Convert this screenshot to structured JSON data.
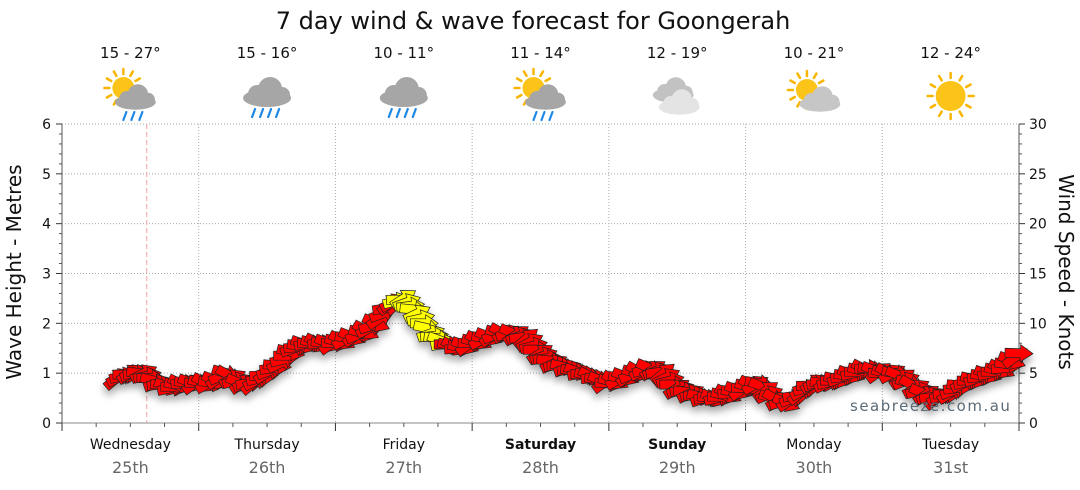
{
  "chart_data": {
    "type": "line",
    "title": "7 day wind & wave forecast for Goongerah",
    "ylabel_left": "Wave Height - Metres",
    "ylabel_right": "Wind Speed - Knots",
    "ylim_left": [
      0,
      6
    ],
    "ylim_right": [
      0,
      30
    ],
    "yticks_left": [
      "0",
      "1",
      "2",
      "3",
      "4",
      "5",
      "6"
    ],
    "yticks_right": [
      "0",
      "5",
      "10",
      "15",
      "20",
      "25",
      "30"
    ],
    "watermark": "seabreeze.com.au",
    "days": [
      {
        "day": "Wednesday",
        "date": "25th",
        "bold": false,
        "temp": "15 - 27°",
        "icon": "sun-cloud-rain-icon"
      },
      {
        "day": "Thursday",
        "date": "26th",
        "bold": false,
        "temp": "15 - 16°",
        "icon": "cloud-rain-icon"
      },
      {
        "day": "Friday",
        "date": "27th",
        "bold": false,
        "temp": "10 - 11°",
        "icon": "cloud-rain-icon"
      },
      {
        "day": "Saturday",
        "date": "28th",
        "bold": true,
        "temp": "11 - 14°",
        "icon": "sun-cloud-rain-icon"
      },
      {
        "day": "Sunday",
        "date": "29th",
        "bold": true,
        "temp": "12 - 19°",
        "icon": "cloud-icon"
      },
      {
        "day": "Monday",
        "date": "30th",
        "bold": false,
        "temp": "10 - 21°",
        "icon": "sun-cloud-icon"
      },
      {
        "day": "Tuesday",
        "date": "31st",
        "bold": false,
        "temp": "12 - 24°",
        "icon": "sun-icon"
      }
    ],
    "wind_series": {
      "name": "Wind Speed",
      "x_days": [
        0.4,
        0.5,
        0.6,
        0.7,
        0.8,
        0.9,
        1.0,
        1.1,
        1.2,
        1.3,
        1.4,
        1.5,
        1.6,
        1.7,
        1.8,
        1.9,
        2.0,
        2.1,
        2.2,
        2.3,
        2.4,
        2.5,
        2.6,
        2.7,
        2.8,
        2.9,
        3.0,
        3.1,
        3.2,
        3.3,
        3.4,
        3.5,
        3.6,
        3.7,
        3.8,
        3.9,
        4.0,
        4.1,
        4.2,
        4.3,
        4.4,
        4.5,
        4.6,
        4.7,
        4.8,
        4.9,
        5.0,
        5.1,
        5.2,
        5.3,
        5.4,
        5.5,
        5.6,
        5.7,
        5.8,
        5.9,
        6.0,
        6.1,
        6.2,
        6.3,
        6.4,
        6.5,
        6.6,
        6.7,
        6.8,
        6.9,
        7.0
      ],
      "knots": [
        4.5,
        5,
        5,
        4,
        3.5,
        4,
        4,
        4,
        5,
        4,
        4,
        5,
        6,
        7.5,
        8,
        8,
        8,
        8.5,
        9,
        10,
        12,
        12.5,
        11,
        9,
        8,
        7.5,
        8,
        8.5,
        9,
        9,
        8.5,
        7,
        6,
        5.5,
        5,
        4.5,
        4,
        4.5,
        5,
        5.5,
        5,
        3.5,
        3,
        2.5,
        2.5,
        3,
        3.5,
        4,
        2.5,
        2,
        3,
        4,
        4,
        4.5,
        5,
        5.5,
        5,
        5,
        4,
        3,
        2.5,
        3,
        4,
        4.5,
        5,
        5.5,
        7
      ],
      "highlight": {
        "from_day": 2.45,
        "to_day": 2.8,
        "color": "#ffff00"
      },
      "color": "#ff0000"
    },
    "wave_series": {
      "name": "Wave Height",
      "values": []
    },
    "grid": true,
    "current_time_marker_day": 0.62
  }
}
